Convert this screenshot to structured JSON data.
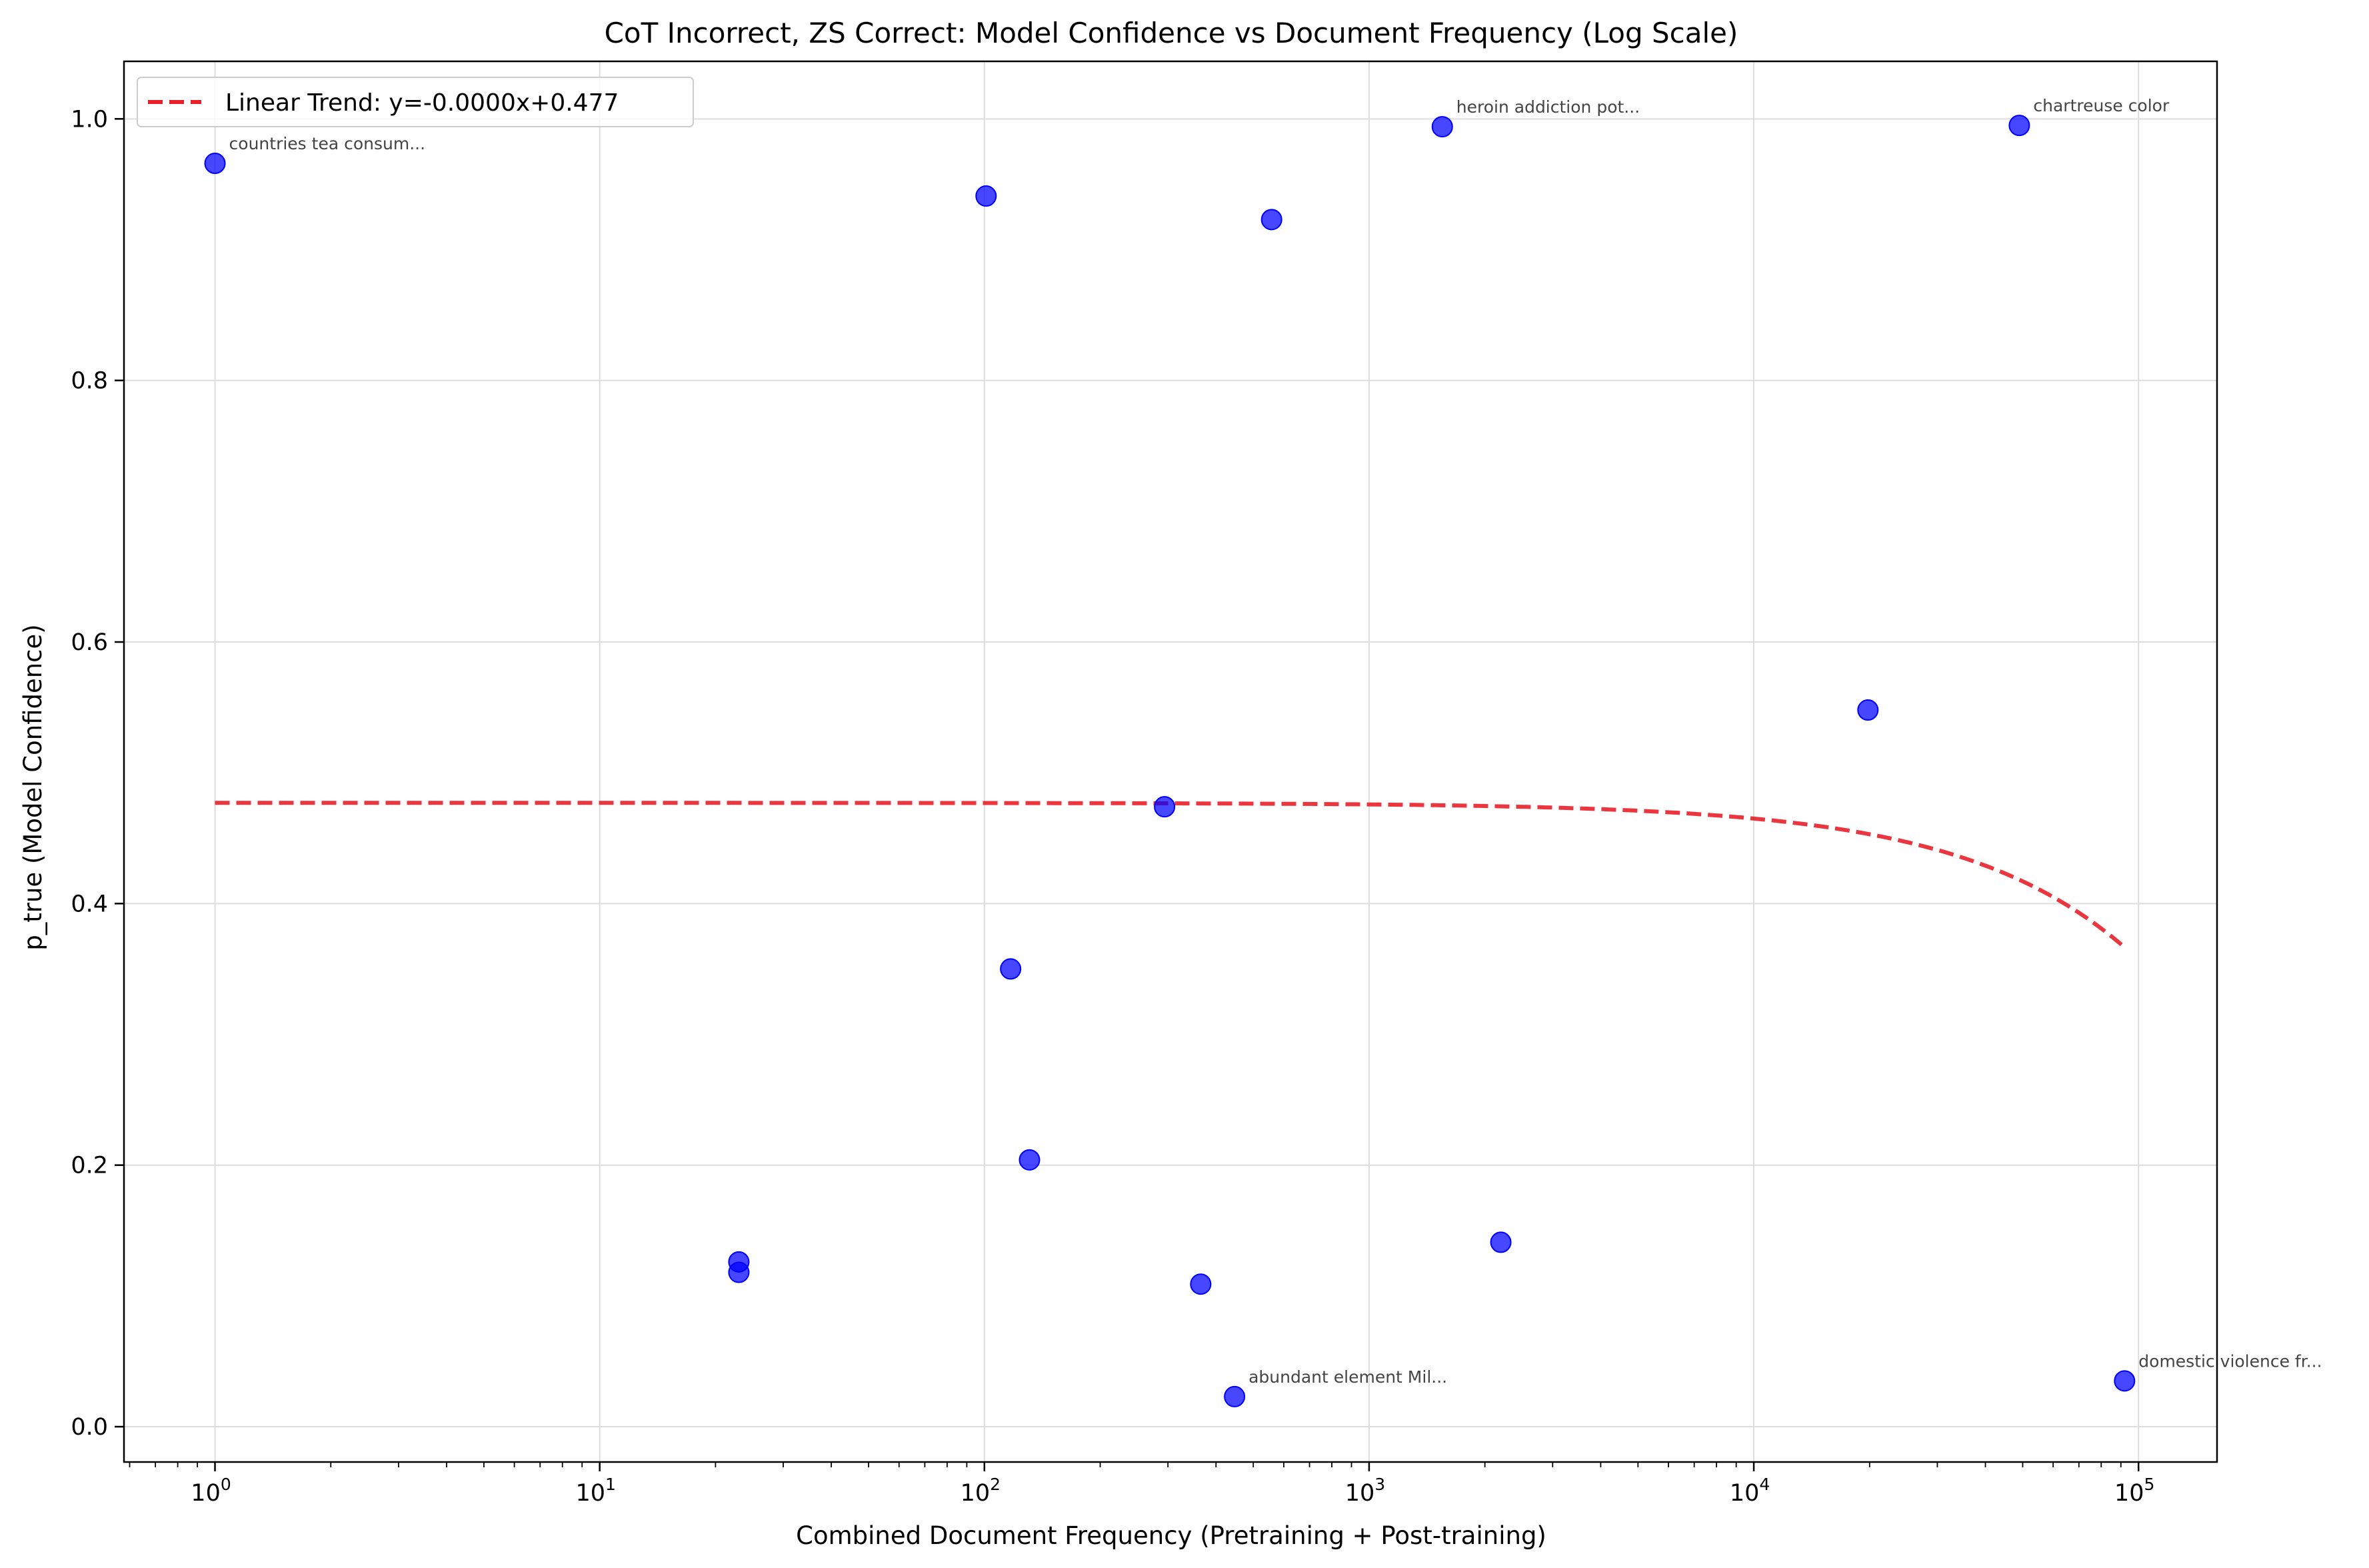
{
  "chart_data": {
    "type": "scatter",
    "title": "CoT Incorrect, ZS Correct: Model Confidence vs Document Frequency (Log Scale)",
    "xlabel": "Combined Document Frequency (Pretraining + Post-training)",
    "ylabel": "p_true (Model Confidence)",
    "xscale": "log",
    "xlim": [
      0.58,
      160000
    ],
    "ylim": [
      -0.027,
      1.044
    ],
    "grid": true,
    "legend_position": "upper left",
    "x_ticks": [
      {
        "value": 1,
        "base": "10",
        "exp": "0"
      },
      {
        "value": 10,
        "base": "10",
        "exp": "1"
      },
      {
        "value": 100,
        "base": "10",
        "exp": "2"
      },
      {
        "value": 1000,
        "base": "10",
        "exp": "3"
      },
      {
        "value": 10000,
        "base": "10",
        "exp": "4"
      },
      {
        "value": 100000,
        "base": "10",
        "exp": "5"
      }
    ],
    "y_ticks": [
      {
        "value": 0.0,
        "label": "0.0"
      },
      {
        "value": 0.2,
        "label": "0.2"
      },
      {
        "value": 0.4,
        "label": "0.4"
      },
      {
        "value": 0.6,
        "label": "0.6"
      },
      {
        "value": 0.8,
        "label": "0.8"
      },
      {
        "value": 1.0,
        "label": "1.0"
      }
    ],
    "points": [
      {
        "x": 1,
        "y": 0.966,
        "label": "countries tea consum..."
      },
      {
        "x": 23,
        "y": 0.126,
        "label": ""
      },
      {
        "x": 23,
        "y": 0.118,
        "label": ""
      },
      {
        "x": 101,
        "y": 0.941,
        "label": ""
      },
      {
        "x": 117,
        "y": 0.35,
        "label": ""
      },
      {
        "x": 131,
        "y": 0.204,
        "label": ""
      },
      {
        "x": 294,
        "y": 0.474,
        "label": ""
      },
      {
        "x": 365,
        "y": 0.109,
        "label": ""
      },
      {
        "x": 447,
        "y": 0.023,
        "label": "abundant element Mil..."
      },
      {
        "x": 558,
        "y": 0.923,
        "label": ""
      },
      {
        "x": 1550,
        "y": 0.994,
        "label": "heroin addiction pot..."
      },
      {
        "x": 2200,
        "y": 0.141,
        "label": ""
      },
      {
        "x": 19800,
        "y": 0.548,
        "label": ""
      },
      {
        "x": 49000,
        "y": 0.995,
        "label": "chartreuse color"
      },
      {
        "x": 92000,
        "y": 0.035,
        "label": "domestic violence fr..."
      }
    ],
    "trend": {
      "name": "Linear Trend: y=-0.0000x+0.477",
      "slope": -1.2e-06,
      "intercept": 0.477,
      "x_range": [
        1,
        92000
      ]
    },
    "colors": {
      "points": "#0000ff",
      "trend": "#e8202a",
      "annotation": "#444444",
      "grid": "#dddddd"
    }
  }
}
